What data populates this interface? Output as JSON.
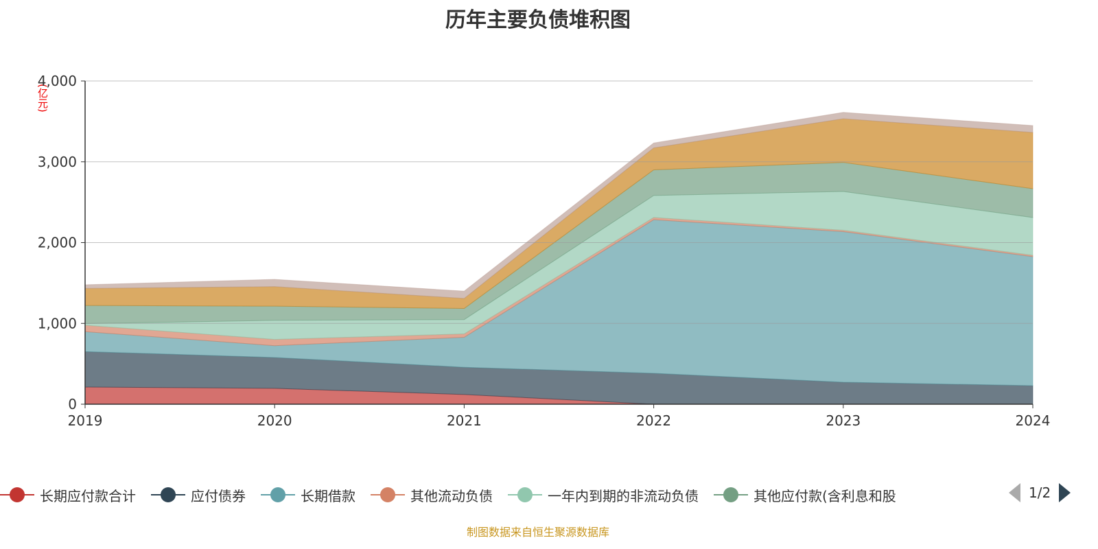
{
  "chart_data": {
    "type": "area",
    "stacked": true,
    "title": "历年主要负债堆积图",
    "ylabel": "(亿元)",
    "xlabel": "",
    "x": [
      "2019",
      "2020",
      "2021",
      "2022",
      "2023",
      "2024"
    ],
    "ylim": [
      0,
      4000
    ],
    "yticks": [
      0,
      1000,
      2000,
      3000,
      4000
    ],
    "ytick_labels": [
      "0",
      "1,000",
      "2,000",
      "3,000",
      "4,000"
    ],
    "grid": "horizontal",
    "legend_position": "bottom",
    "series": [
      {
        "name": "长期应付款合计",
        "color": "#c23531",
        "values": [
          212,
          196,
          120,
          0,
          0,
          0
        ]
      },
      {
        "name": "应付债券",
        "color": "#2f4554",
        "values": [
          439,
          382,
          337,
          382,
          272,
          229
        ]
      },
      {
        "name": "长期借款",
        "color": "#61a0a8",
        "values": [
          247,
          146,
          371,
          1901,
          1864,
          1597
        ]
      },
      {
        "name": "其他流动负债",
        "color": "#d48265",
        "values": [
          79,
          78,
          42,
          28,
          17,
          17
        ]
      },
      {
        "name": "一年内到期的非流动负债",
        "color": "#91c7ae",
        "values": [
          20,
          236,
          177,
          272,
          480,
          467
        ]
      },
      {
        "name": "其他应付款(含利息和股",
        "color": "#749f83",
        "values": [
          225,
          175,
          138,
          317,
          359,
          357
        ]
      },
      {
        "color": "#ca8622",
        "values": [
          211,
          242,
          124,
          272,
          541,
          696
        ]
      },
      {
        "color": "#bda29a",
        "values": [
          45,
          90,
          90,
          61,
          78,
          85
        ]
      }
    ]
  },
  "legend": {
    "page": "1/2"
  },
  "footer": "制图数据来自恒生聚源数据库"
}
